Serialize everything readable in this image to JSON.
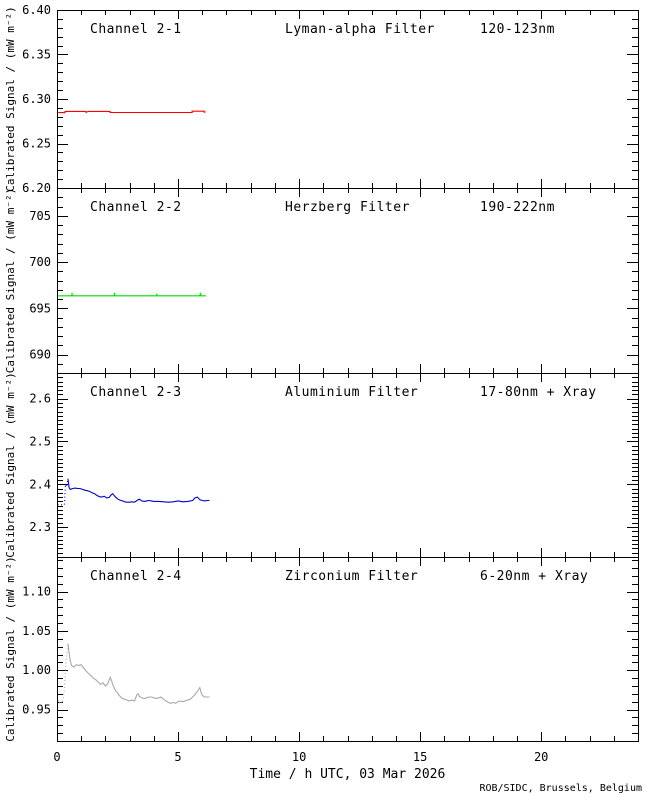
{
  "figure": {
    "xlabel": "Time / h UTC, 03 Mar 2026",
    "credit": "ROB/SIDC, Brussels, Belgium",
    "credit_color": "#000040",
    "background": "#ffffff",
    "axis_color": "#000000"
  },
  "xaxis": {
    "xlim": [
      0,
      24
    ],
    "major_ticks": [
      0,
      5,
      10,
      15,
      20
    ],
    "tick_labels": [
      "0",
      "5",
      "10",
      "15",
      "20"
    ],
    "minor_step": 1
  },
  "chart_data": [
    {
      "type": "line",
      "title": "Channel 2-1",
      "filter": "Lyman-alpha Filter",
      "band": "120-123nm",
      "color": "#ff0000",
      "ylabel": "Calibrated Signal / (mW m⁻²)",
      "ylim": [
        6.2,
        6.4
      ],
      "yticks": [
        6.2,
        6.25,
        6.3,
        6.35,
        6.4
      ],
      "ytick_labels": [
        "6.20",
        "6.25",
        "6.30",
        "6.35",
        "6.40"
      ],
      "minor_step": 0.01,
      "series": [
        {
          "style": "solid",
          "points": [
            [
              0.05,
              6.2847
            ],
            [
              0.33,
              6.2847
            ],
            [
              0.33,
              6.2861
            ],
            [
              1.18,
              6.2861
            ],
            [
              1.2,
              6.2849
            ],
            [
              1.28,
              6.2861
            ],
            [
              2.19,
              6.2861
            ],
            [
              2.19,
              6.2848
            ],
            [
              5.58,
              6.2848
            ],
            [
              5.58,
              6.2863
            ],
            [
              6.08,
              6.2863
            ],
            [
              6.08,
              6.2852
            ],
            [
              6.12,
              6.2852
            ]
          ]
        }
      ]
    },
    {
      "type": "line",
      "title": "Channel 2-2",
      "filter": "Herzberg Filter",
      "band": "190-222nm",
      "color": "#00dd00",
      "ylabel": "Calibrated Signal / (mW m⁻²)",
      "ylim": [
        688,
        708
      ],
      "yticks": [
        690,
        695,
        700,
        705
      ],
      "ytick_labels": [
        "690",
        "695",
        "700",
        "705"
      ],
      "minor_step": 1,
      "series": [
        {
          "style": "solid",
          "points": [
            [
              0.05,
              696.35
            ],
            [
              0.6,
              696.35
            ],
            [
              0.62,
              696.55
            ],
            [
              0.64,
              696.35
            ],
            [
              2.35,
              696.35
            ],
            [
              2.37,
              696.55
            ],
            [
              2.39,
              696.35
            ],
            [
              4.1,
              696.35
            ],
            [
              4.12,
              696.55
            ],
            [
              4.14,
              696.35
            ],
            [
              5.9,
              696.35
            ],
            [
              5.92,
              696.55
            ],
            [
              5.94,
              696.35
            ],
            [
              6.15,
              696.35
            ]
          ]
        }
      ]
    },
    {
      "type": "line",
      "title": "Channel 2-3",
      "filter": "Aluminium Filter",
      "band": "17-80nm + Xray",
      "color": "#0000cd",
      "ylabel": "Calibrated Signal / (mW m⁻²)",
      "ylim": [
        2.23,
        2.66
      ],
      "yticks": [
        2.3,
        2.4,
        2.5,
        2.6
      ],
      "ytick_labels": [
        "2.3",
        "2.4",
        "2.5",
        "2.6"
      ],
      "minor_step": 0.01,
      "series": [
        {
          "style": "dotted",
          "points": [
            [
              0.02,
              2.352
            ],
            [
              0.3,
              2.352
            ],
            [
              0.35,
              2.4
            ],
            [
              0.4,
              2.394
            ],
            [
              0.45,
              2.413
            ]
          ]
        },
        {
          "style": "solid",
          "points": [
            [
              0.45,
              2.413
            ],
            [
              0.5,
              2.392
            ],
            [
              0.55,
              2.388
            ],
            [
              0.65,
              2.39
            ],
            [
              0.75,
              2.391
            ],
            [
              0.85,
              2.39
            ],
            [
              0.95,
              2.39
            ],
            [
              1.05,
              2.388
            ],
            [
              1.15,
              2.386
            ],
            [
              1.25,
              2.385
            ],
            [
              1.35,
              2.383
            ],
            [
              1.45,
              2.38
            ],
            [
              1.55,
              2.378
            ],
            [
              1.65,
              2.374
            ],
            [
              1.75,
              2.371
            ],
            [
              1.85,
              2.37
            ],
            [
              1.95,
              2.372
            ],
            [
              2.05,
              2.368
            ],
            [
              2.15,
              2.369
            ],
            [
              2.25,
              2.376
            ],
            [
              2.3,
              2.378
            ],
            [
              2.4,
              2.371
            ],
            [
              2.5,
              2.366
            ],
            [
              2.6,
              2.363
            ],
            [
              2.7,
              2.361
            ],
            [
              2.8,
              2.359
            ],
            [
              2.9,
              2.358
            ],
            [
              3.0,
              2.358
            ],
            [
              3.1,
              2.359
            ],
            [
              3.2,
              2.358
            ],
            [
              3.3,
              2.362
            ],
            [
              3.4,
              2.365
            ],
            [
              3.5,
              2.361
            ],
            [
              3.6,
              2.36
            ],
            [
              3.7,
              2.361
            ],
            [
              3.8,
              2.362
            ],
            [
              3.9,
              2.361
            ],
            [
              4.0,
              2.36
            ],
            [
              4.2,
              2.36
            ],
            [
              4.4,
              2.359
            ],
            [
              4.6,
              2.358
            ],
            [
              4.8,
              2.359
            ],
            [
              5.0,
              2.361
            ],
            [
              5.2,
              2.359
            ],
            [
              5.4,
              2.36
            ],
            [
              5.6,
              2.362
            ],
            [
              5.7,
              2.368
            ],
            [
              5.8,
              2.37
            ],
            [
              5.9,
              2.364
            ],
            [
              6.0,
              2.362
            ],
            [
              6.1,
              2.361
            ],
            [
              6.2,
              2.362
            ],
            [
              6.3,
              2.362
            ]
          ]
        }
      ]
    },
    {
      "type": "line",
      "title": "Channel 2-4",
      "filter": "Zirconium Filter",
      "band": "6-20nm + Xray",
      "color": "#a8a8a8",
      "ylabel": "Calibrated Signal / (mW m⁻²)",
      "ylim": [
        0.91,
        1.144
      ],
      "yticks": [
        0.95,
        1.0,
        1.05,
        1.1
      ],
      "ytick_labels": [
        "0.95",
        "1.00",
        "1.05",
        "1.10"
      ],
      "minor_step": 0.01,
      "series": [
        {
          "style": "dotted",
          "points": [
            [
              0.05,
              0.962
            ],
            [
              0.1,
              0.958
            ],
            [
              0.15,
              0.961
            ],
            [
              0.2,
              0.958
            ],
            [
              0.25,
              0.963
            ],
            [
              0.3,
              0.975
            ],
            [
              0.35,
              1.0
            ],
            [
              0.4,
              1.02
            ],
            [
              0.45,
              1.034
            ]
          ]
        },
        {
          "style": "solid",
          "points": [
            [
              0.45,
              1.034
            ],
            [
              0.5,
              1.022
            ],
            [
              0.55,
              1.012
            ],
            [
              0.6,
              1.006
            ],
            [
              0.7,
              1.004
            ],
            [
              0.8,
              1.007
            ],
            [
              0.9,
              1.006
            ],
            [
              1.0,
              1.007
            ],
            [
              1.1,
              1.003
            ],
            [
              1.2,
              0.999
            ],
            [
              1.3,
              0.996
            ],
            [
              1.4,
              0.993
            ],
            [
              1.5,
              0.99
            ],
            [
              1.6,
              0.988
            ],
            [
              1.7,
              0.985
            ],
            [
              1.8,
              0.982
            ],
            [
              1.9,
              0.984
            ],
            [
              2.0,
              0.98
            ],
            [
              2.1,
              0.983
            ],
            [
              2.2,
              0.991
            ],
            [
              2.25,
              0.987
            ],
            [
              2.3,
              0.982
            ],
            [
              2.4,
              0.975
            ],
            [
              2.5,
              0.971
            ],
            [
              2.6,
              0.967
            ],
            [
              2.7,
              0.964
            ],
            [
              2.8,
              0.963
            ],
            [
              2.9,
              0.962
            ],
            [
              3.0,
              0.961
            ],
            [
              3.1,
              0.962
            ],
            [
              3.2,
              0.961
            ],
            [
              3.3,
              0.969
            ],
            [
              3.35,
              0.97
            ],
            [
              3.4,
              0.967
            ],
            [
              3.5,
              0.965
            ],
            [
              3.6,
              0.964
            ],
            [
              3.7,
              0.965
            ],
            [
              3.8,
              0.966
            ],
            [
              3.9,
              0.966
            ],
            [
              4.0,
              0.965
            ],
            [
              4.1,
              0.964
            ],
            [
              4.2,
              0.965
            ],
            [
              4.3,
              0.966
            ],
            [
              4.4,
              0.963
            ],
            [
              4.5,
              0.961
            ],
            [
              4.6,
              0.959
            ],
            [
              4.7,
              0.958
            ],
            [
              4.8,
              0.959
            ],
            [
              4.9,
              0.958
            ],
            [
              5.0,
              0.96
            ],
            [
              5.1,
              0.961
            ],
            [
              5.2,
              0.96
            ],
            [
              5.3,
              0.961
            ],
            [
              5.4,
              0.962
            ],
            [
              5.5,
              0.963
            ],
            [
              5.6,
              0.966
            ],
            [
              5.7,
              0.969
            ],
            [
              5.8,
              0.973
            ],
            [
              5.9,
              0.978
            ],
            [
              5.95,
              0.972
            ],
            [
              6.0,
              0.968
            ],
            [
              6.1,
              0.966
            ],
            [
              6.2,
              0.966
            ],
            [
              6.3,
              0.966
            ]
          ]
        }
      ]
    }
  ]
}
